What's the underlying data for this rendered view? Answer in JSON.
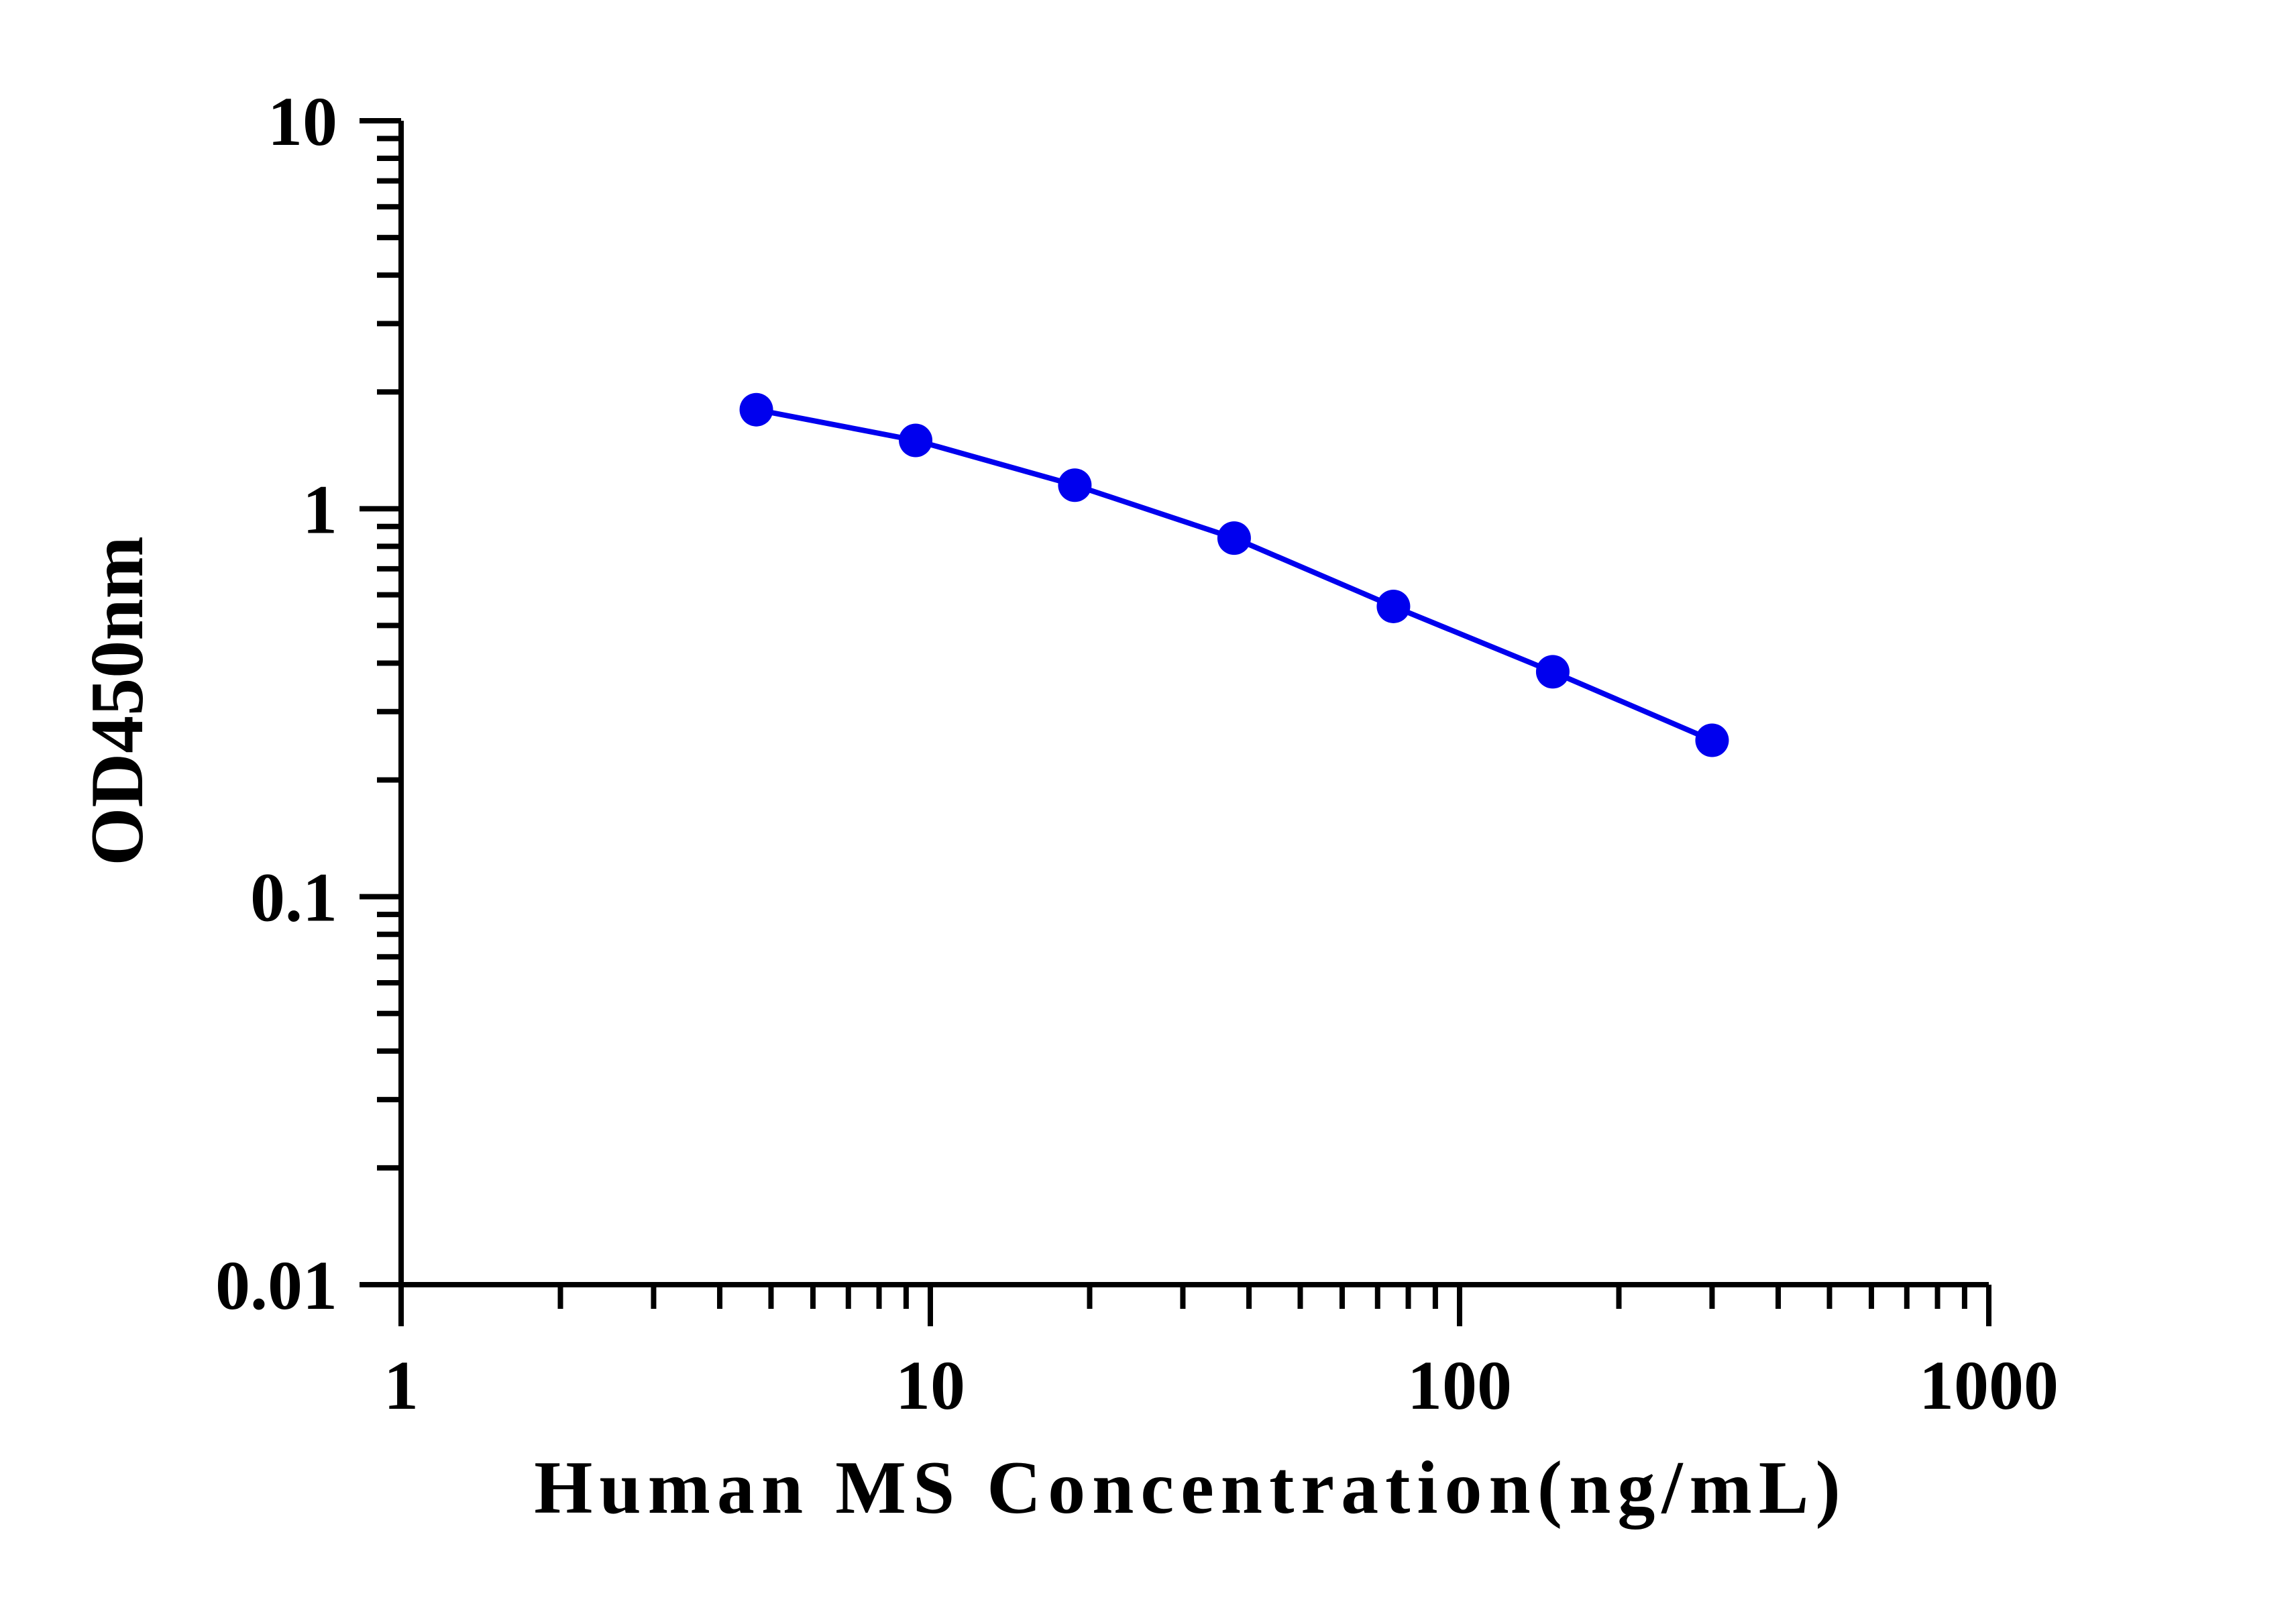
{
  "chart_data": {
    "type": "line",
    "xlabel": "Human MS Concentration(ng/mL)",
    "ylabel": "OD450nm",
    "x_scale": "log",
    "y_scale": "log",
    "xlim": [
      1,
      1000
    ],
    "ylim": [
      0.01,
      10
    ],
    "x_ticks": [
      "1",
      "10",
      "100",
      "1000"
    ],
    "y_ticks": [
      "0.01",
      "0.1",
      "1",
      "10"
    ],
    "grid": false,
    "legend": "none",
    "series": [
      {
        "color": "#0000ee",
        "marker": "circle",
        "x": [
          4.69,
          9.38,
          18.75,
          37.5,
          75,
          150,
          300
        ],
        "y": [
          1.8,
          1.5,
          1.15,
          0.84,
          0.56,
          0.38,
          0.253
        ]
      }
    ]
  }
}
